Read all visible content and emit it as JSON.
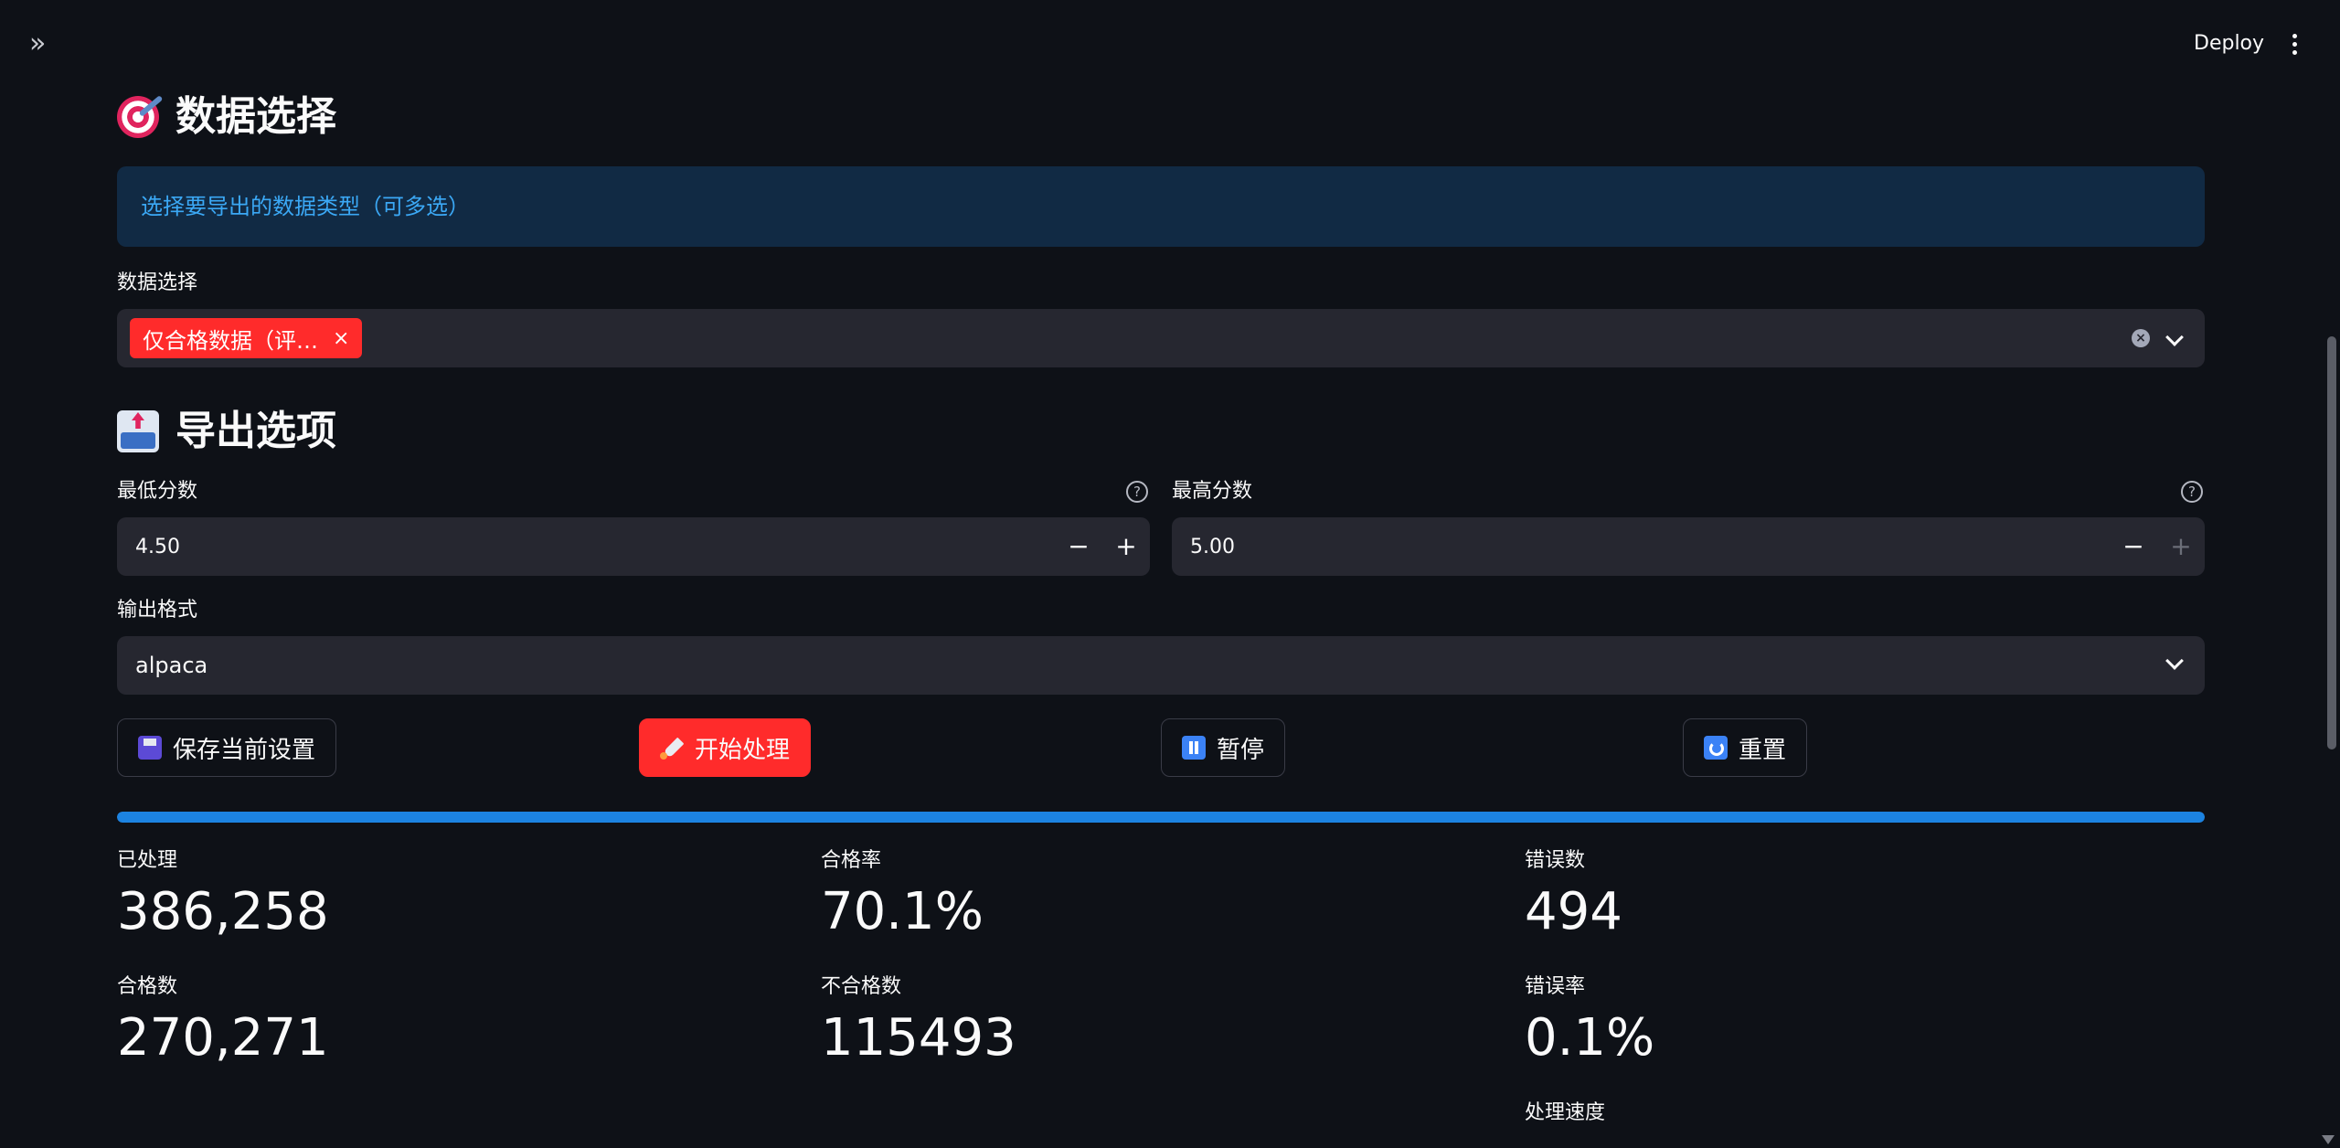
{
  "topbar": {
    "deploy_label": "Deploy"
  },
  "section_data": {
    "title": "数据选择",
    "info": "选择要导出的数据类型（可多选）",
    "select_label": "数据选择",
    "selected_chip": "仅合格数据（评…",
    "chip_remove": "×"
  },
  "section_export": {
    "title": "导出选项",
    "min_label": "最低分数",
    "min_value": "4.50",
    "max_label": "最高分数",
    "max_value": "5.00",
    "format_label": "输出格式",
    "format_value": "alpaca",
    "minus": "−",
    "plus": "+",
    "help": "?"
  },
  "buttons": {
    "save": "保存当前设置",
    "start": "开始处理",
    "pause": "暂停",
    "reset": "重置"
  },
  "progress": {
    "fraction": 1.0
  },
  "metrics": [
    {
      "label": "已处理",
      "value": "386,258"
    },
    {
      "label": "合格率",
      "value": "70.1%"
    },
    {
      "label": "错误数",
      "value": "494"
    },
    {
      "label": "合格数",
      "value": "270,271"
    },
    {
      "label": "不合格数",
      "value": "115493"
    },
    {
      "label": "错误率",
      "value": "0.1%"
    },
    {
      "label": "",
      "value": ""
    },
    {
      "label": "",
      "value": ""
    },
    {
      "label": "处理速度",
      "value": ""
    }
  ],
  "colors": {
    "background": "#0e1117",
    "accent": "#ff2b2b",
    "info": "#3ba8f5",
    "progress": "#1c83e1"
  }
}
